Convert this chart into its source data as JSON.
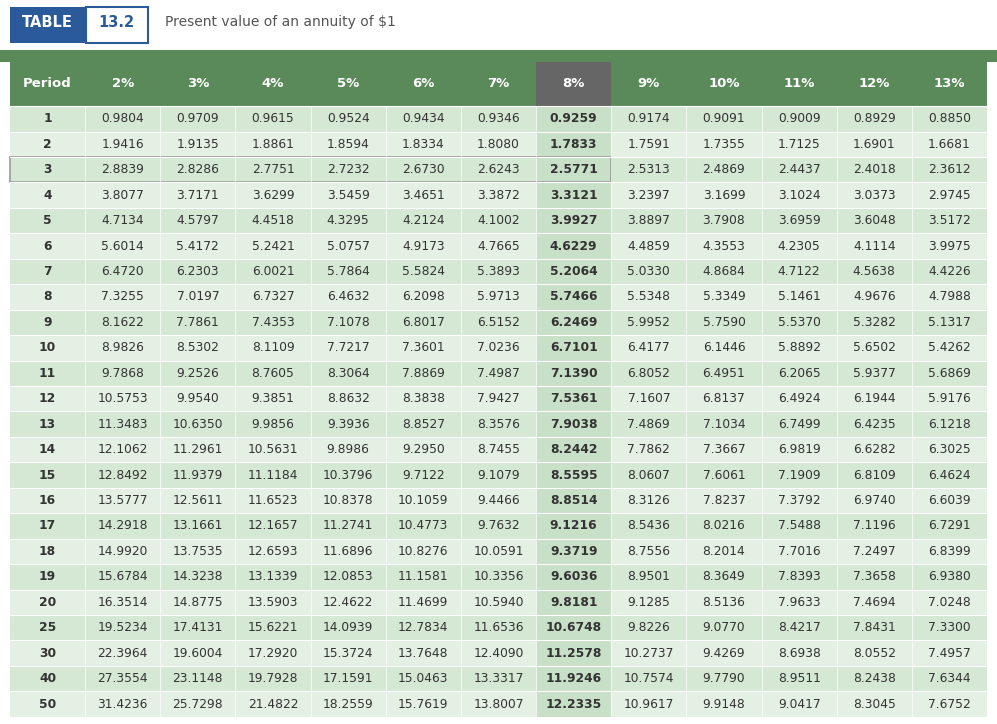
{
  "title_table": "TABLE",
  "title_num": "13.2",
  "title_desc": "Present value of an annuity of $1",
  "columns": [
    "Period",
    "2%",
    "3%",
    "4%",
    "5%",
    "6%",
    "7%",
    "8%",
    "9%",
    "10%",
    "11%",
    "12%",
    "13%"
  ],
  "rows": [
    [
      "1",
      "0.9804",
      "0.9709",
      "0.9615",
      "0.9524",
      "0.9434",
      "0.9346",
      "0.9259",
      "0.9174",
      "0.9091",
      "0.9009",
      "0.8929",
      "0.8850"
    ],
    [
      "2",
      "1.9416",
      "1.9135",
      "1.8861",
      "1.8594",
      "1.8334",
      "1.8080",
      "1.7833",
      "1.7591",
      "1.7355",
      "1.7125",
      "1.6901",
      "1.6681"
    ],
    [
      "3",
      "2.8839",
      "2.8286",
      "2.7751",
      "2.7232",
      "2.6730",
      "2.6243",
      "2.5771",
      "2.5313",
      "2.4869",
      "2.4437",
      "2.4018",
      "2.3612"
    ],
    [
      "4",
      "3.8077",
      "3.7171",
      "3.6299",
      "3.5459",
      "3.4651",
      "3.3872",
      "3.3121",
      "3.2397",
      "3.1699",
      "3.1024",
      "3.0373",
      "2.9745"
    ],
    [
      "5",
      "4.7134",
      "4.5797",
      "4.4518",
      "4.3295",
      "4.2124",
      "4.1002",
      "3.9927",
      "3.8897",
      "3.7908",
      "3.6959",
      "3.6048",
      "3.5172"
    ],
    [
      "6",
      "5.6014",
      "5.4172",
      "5.2421",
      "5.0757",
      "4.9173",
      "4.7665",
      "4.6229",
      "4.4859",
      "4.3553",
      "4.2305",
      "4.1114",
      "3.9975"
    ],
    [
      "7",
      "6.4720",
      "6.2303",
      "6.0021",
      "5.7864",
      "5.5824",
      "5.3893",
      "5.2064",
      "5.0330",
      "4.8684",
      "4.7122",
      "4.5638",
      "4.4226"
    ],
    [
      "8",
      "7.3255",
      "7.0197",
      "6.7327",
      "6.4632",
      "6.2098",
      "5.9713",
      "5.7466",
      "5.5348",
      "5.3349",
      "5.1461",
      "4.9676",
      "4.7988"
    ],
    [
      "9",
      "8.1622",
      "7.7861",
      "7.4353",
      "7.1078",
      "6.8017",
      "6.5152",
      "6.2469",
      "5.9952",
      "5.7590",
      "5.5370",
      "5.3282",
      "5.1317"
    ],
    [
      "10",
      "8.9826",
      "8.5302",
      "8.1109",
      "7.7217",
      "7.3601",
      "7.0236",
      "6.7101",
      "6.4177",
      "6.1446",
      "5.8892",
      "5.6502",
      "5.4262"
    ],
    [
      "11",
      "9.7868",
      "9.2526",
      "8.7605",
      "8.3064",
      "7.8869",
      "7.4987",
      "7.1390",
      "6.8052",
      "6.4951",
      "6.2065",
      "5.9377",
      "5.6869"
    ],
    [
      "12",
      "10.5753",
      "9.9540",
      "9.3851",
      "8.8632",
      "8.3838",
      "7.9427",
      "7.5361",
      "7.1607",
      "6.8137",
      "6.4924",
      "6.1944",
      "5.9176"
    ],
    [
      "13",
      "11.3483",
      "10.6350",
      "9.9856",
      "9.3936",
      "8.8527",
      "8.3576",
      "7.9038",
      "7.4869",
      "7.1034",
      "6.7499",
      "6.4235",
      "6.1218"
    ],
    [
      "14",
      "12.1062",
      "11.2961",
      "10.5631",
      "9.8986",
      "9.2950",
      "8.7455",
      "8.2442",
      "7.7862",
      "7.3667",
      "6.9819",
      "6.6282",
      "6.3025"
    ],
    [
      "15",
      "12.8492",
      "11.9379",
      "11.1184",
      "10.3796",
      "9.7122",
      "9.1079",
      "8.5595",
      "8.0607",
      "7.6061",
      "7.1909",
      "6.8109",
      "6.4624"
    ],
    [
      "16",
      "13.5777",
      "12.5611",
      "11.6523",
      "10.8378",
      "10.1059",
      "9.4466",
      "8.8514",
      "8.3126",
      "7.8237",
      "7.3792",
      "6.9740",
      "6.6039"
    ],
    [
      "17",
      "14.2918",
      "13.1661",
      "12.1657",
      "11.2741",
      "10.4773",
      "9.7632",
      "9.1216",
      "8.5436",
      "8.0216",
      "7.5488",
      "7.1196",
      "6.7291"
    ],
    [
      "18",
      "14.9920",
      "13.7535",
      "12.6593",
      "11.6896",
      "10.8276",
      "10.0591",
      "9.3719",
      "8.7556",
      "8.2014",
      "7.7016",
      "7.2497",
      "6.8399"
    ],
    [
      "19",
      "15.6784",
      "14.3238",
      "13.1339",
      "12.0853",
      "11.1581",
      "10.3356",
      "9.6036",
      "8.9501",
      "8.3649",
      "7.8393",
      "7.3658",
      "6.9380"
    ],
    [
      "20",
      "16.3514",
      "14.8775",
      "13.5903",
      "12.4622",
      "11.4699",
      "10.5940",
      "9.8181",
      "9.1285",
      "8.5136",
      "7.9633",
      "7.4694",
      "7.0248"
    ],
    [
      "25",
      "19.5234",
      "17.4131",
      "15.6221",
      "14.0939",
      "12.7834",
      "11.6536",
      "10.6748",
      "9.8226",
      "9.0770",
      "8.4217",
      "7.8431",
      "7.3300"
    ],
    [
      "30",
      "22.3964",
      "19.6004",
      "17.2920",
      "15.3724",
      "13.7648",
      "12.4090",
      "11.2578",
      "10.2737",
      "9.4269",
      "8.6938",
      "8.0552",
      "7.4957"
    ],
    [
      "40",
      "27.3554",
      "23.1148",
      "19.7928",
      "17.1591",
      "15.0463",
      "13.3317",
      "11.9246",
      "10.7574",
      "9.7790",
      "8.9511",
      "8.2438",
      "7.6344"
    ],
    [
      "50",
      "31.4236",
      "25.7298",
      "21.4822",
      "18.2559",
      "15.7619",
      "13.8007",
      "12.2335",
      "10.9617",
      "9.9148",
      "9.0417",
      "8.3045",
      "7.6752"
    ]
  ],
  "header_bg": "#5a8a5a",
  "header_text": "#ffffff",
  "col8_bg": "#c8dfc8",
  "col8_header_bg": "#666666",
  "row3_border_color": "#999999",
  "even_row_bg": "#d4e8d4",
  "odd_row_bg": "#e4f0e4",
  "table_label_bg": "#2a5a9a",
  "table_label_text": "#ffffff",
  "table_num_bg": "#ffffff",
  "table_num_border": "#2a5a9a",
  "table_num_text": "#2a5a9a",
  "title_text_color": "#555555",
  "highlight_col": 7,
  "row3_index": 2
}
